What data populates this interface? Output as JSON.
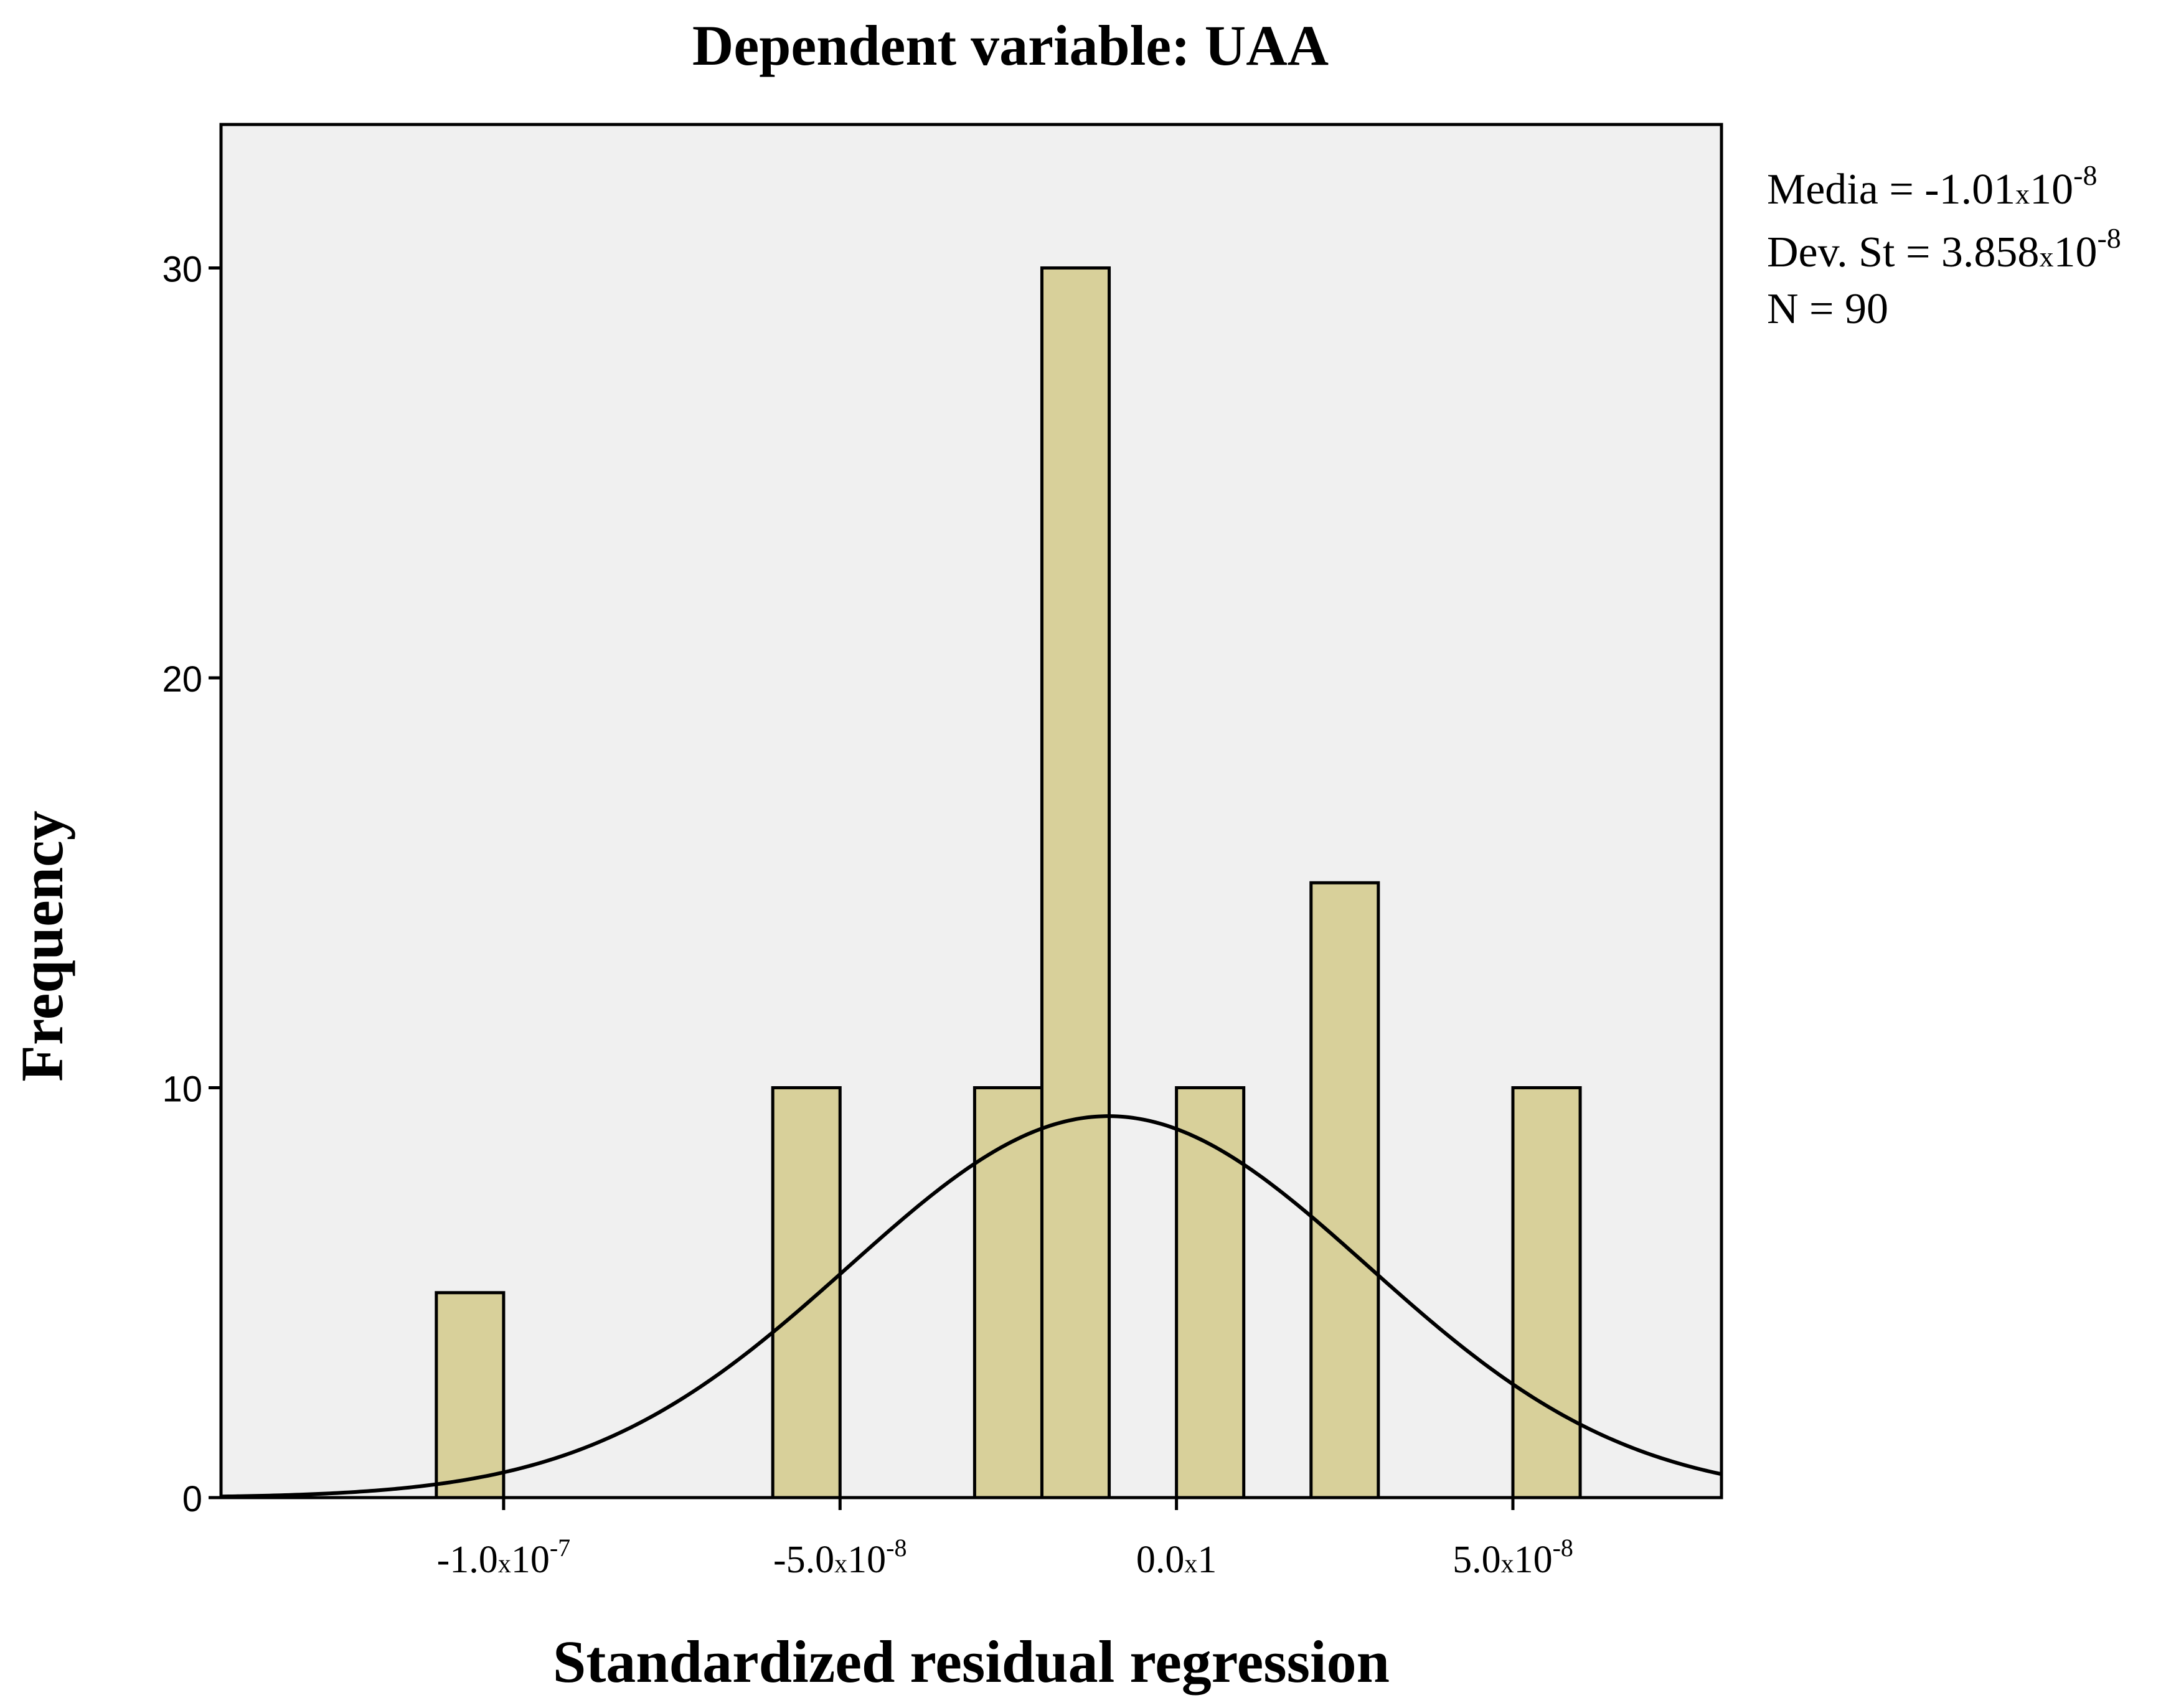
{
  "chart_data": {
    "type": "bar",
    "title": "Dependent variable: UAA",
    "xlabel": "Standardized residual regression",
    "ylabel": "Frequency",
    "xlim": [
      -1.42e-07,
      8.1e-08
    ],
    "ylim": [
      0,
      33.5
    ],
    "yticks": [
      {
        "value": 0,
        "label": "0"
      },
      {
        "value": 10,
        "label": "10"
      },
      {
        "value": 20,
        "label": "20"
      },
      {
        "value": 30,
        "label": "30"
      }
    ],
    "xticks": [
      {
        "value": -1e-07,
        "mantissa": "-1.0",
        "times": "x",
        "base": "10",
        "exp": "-7"
      },
      {
        "value": -5e-08,
        "mantissa": "-5.0",
        "times": "x",
        "base": "10",
        "exp": "-8"
      },
      {
        "value": 0,
        "mantissa": "0.0",
        "times": "x",
        "base": "1",
        "exp": ""
      },
      {
        "value": 5e-08,
        "mantissa": "5.0",
        "times": "x",
        "base": "10",
        "exp": "-8"
      }
    ],
    "bin_width": 1e-08,
    "bins": [
      {
        "start": -1.1e-07,
        "end": -1e-07,
        "frequency": 5
      },
      {
        "start": -6e-08,
        "end": -5e-08,
        "frequency": 10
      },
      {
        "start": -3e-08,
        "end": -2e-08,
        "frequency": 10
      },
      {
        "start": -2e-08,
        "end": -1e-08,
        "frequency": 30
      },
      {
        "start": 0.0,
        "end": 1e-08,
        "frequency": 10
      },
      {
        "start": 2e-08,
        "end": 3e-08,
        "frequency": 15
      },
      {
        "start": 5e-08,
        "end": 6e-08,
        "frequency": 10
      }
    ],
    "normal_curve": {
      "mean": -1.01e-08,
      "std": 3.858e-08,
      "n": 90
    },
    "stats": {
      "mean_label": "Media = -1.01",
      "mean_times": "x",
      "mean_base": "10",
      "mean_exp": "-8",
      "std_label": "Dev. St = 3.858",
      "std_times": "x",
      "std_base": "10",
      "std_exp": "-8",
      "n_label": "N = 90"
    },
    "colors": {
      "plot_background": "#f0f0f0",
      "bar_fill": "#d8d09a",
      "bar_stroke": "#000000",
      "curve": "#000000"
    }
  }
}
